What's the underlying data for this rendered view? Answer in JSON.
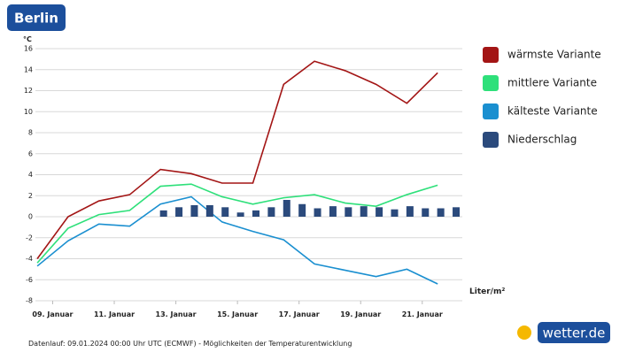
{
  "chart_data": {
    "type": "line",
    "title": "Berlin",
    "y_unit": "°C",
    "bar_unit": "Liter/m²",
    "footer": "Datenlauf: 09.01.2024 00:00 Uhr UTC (ECMWF) - Möglichkeiten der Temperaturentwicklung",
    "logo": "wetter.de",
    "x": [
      8.5,
      9.5,
      10.5,
      11.5,
      12.5,
      13.5,
      14.5,
      15.5,
      16.5,
      17.5,
      18.5,
      19.5,
      20.5,
      21.5
    ],
    "xlim": [
      8.44,
      22.3
    ],
    "xticks": [
      {
        "value": 9,
        "label": "09. Januar"
      },
      {
        "value": 11,
        "label": "11. Januar"
      },
      {
        "value": 13,
        "label": "13. Januar"
      },
      {
        "value": 15,
        "label": "15. Januar"
      },
      {
        "value": 17,
        "label": "17. Januar"
      },
      {
        "value": 19,
        "label": "19. Januar"
      },
      {
        "value": 21,
        "label": "21. Januar"
      }
    ],
    "ylim": [
      -8,
      16
    ],
    "yticks": [
      -8,
      -6,
      -4,
      -2,
      0,
      2,
      4,
      6,
      8,
      10,
      12,
      14,
      16
    ],
    "grid": true,
    "series": [
      {
        "name": "wärmste Variante",
        "color": "#a31515",
        "values": [
          -4,
          0,
          1.5,
          2.1,
          4.5,
          4.1,
          3.2,
          3.2,
          12.6,
          14.8,
          13.9,
          12.6,
          10.8,
          13.7
        ]
      },
      {
        "name": "mittlere Variante",
        "color": "#2ee07a",
        "values": [
          -4.4,
          -1.1,
          0.2,
          0.6,
          2.9,
          3.1,
          1.9,
          1.2,
          1.8,
          2.1,
          1.3,
          1.0,
          2.1,
          3.0
        ]
      },
      {
        "name": "kälteste Variante",
        "color": "#1a8fd0",
        "values": [
          -4.7,
          -2.3,
          -0.7,
          -0.9,
          1.2,
          1.9,
          -0.5,
          -1.4,
          -2.2,
          -4.5,
          -5.1,
          -5.7,
          -5.0,
          -6.4
        ]
      },
      {
        "name": "Niederschlag",
        "color": "#2b4a7c",
        "type": "bar",
        "x": [
          12.6,
          13.1,
          13.6,
          14.1,
          14.6,
          15.1,
          15.6,
          16.1,
          16.6,
          17.1,
          17.6,
          18.1,
          18.6,
          19.1,
          19.6,
          20.1,
          20.6,
          21.1,
          21.6,
          22.1
        ],
        "values": [
          0.6,
          0.9,
          1.1,
          1.1,
          0.9,
          0.4,
          0.6,
          0.9,
          1.6,
          1.2,
          0.8,
          1.0,
          0.9,
          1.0,
          0.9,
          0.7,
          1.0,
          0.8,
          0.8,
          0.9
        ]
      }
    ]
  }
}
